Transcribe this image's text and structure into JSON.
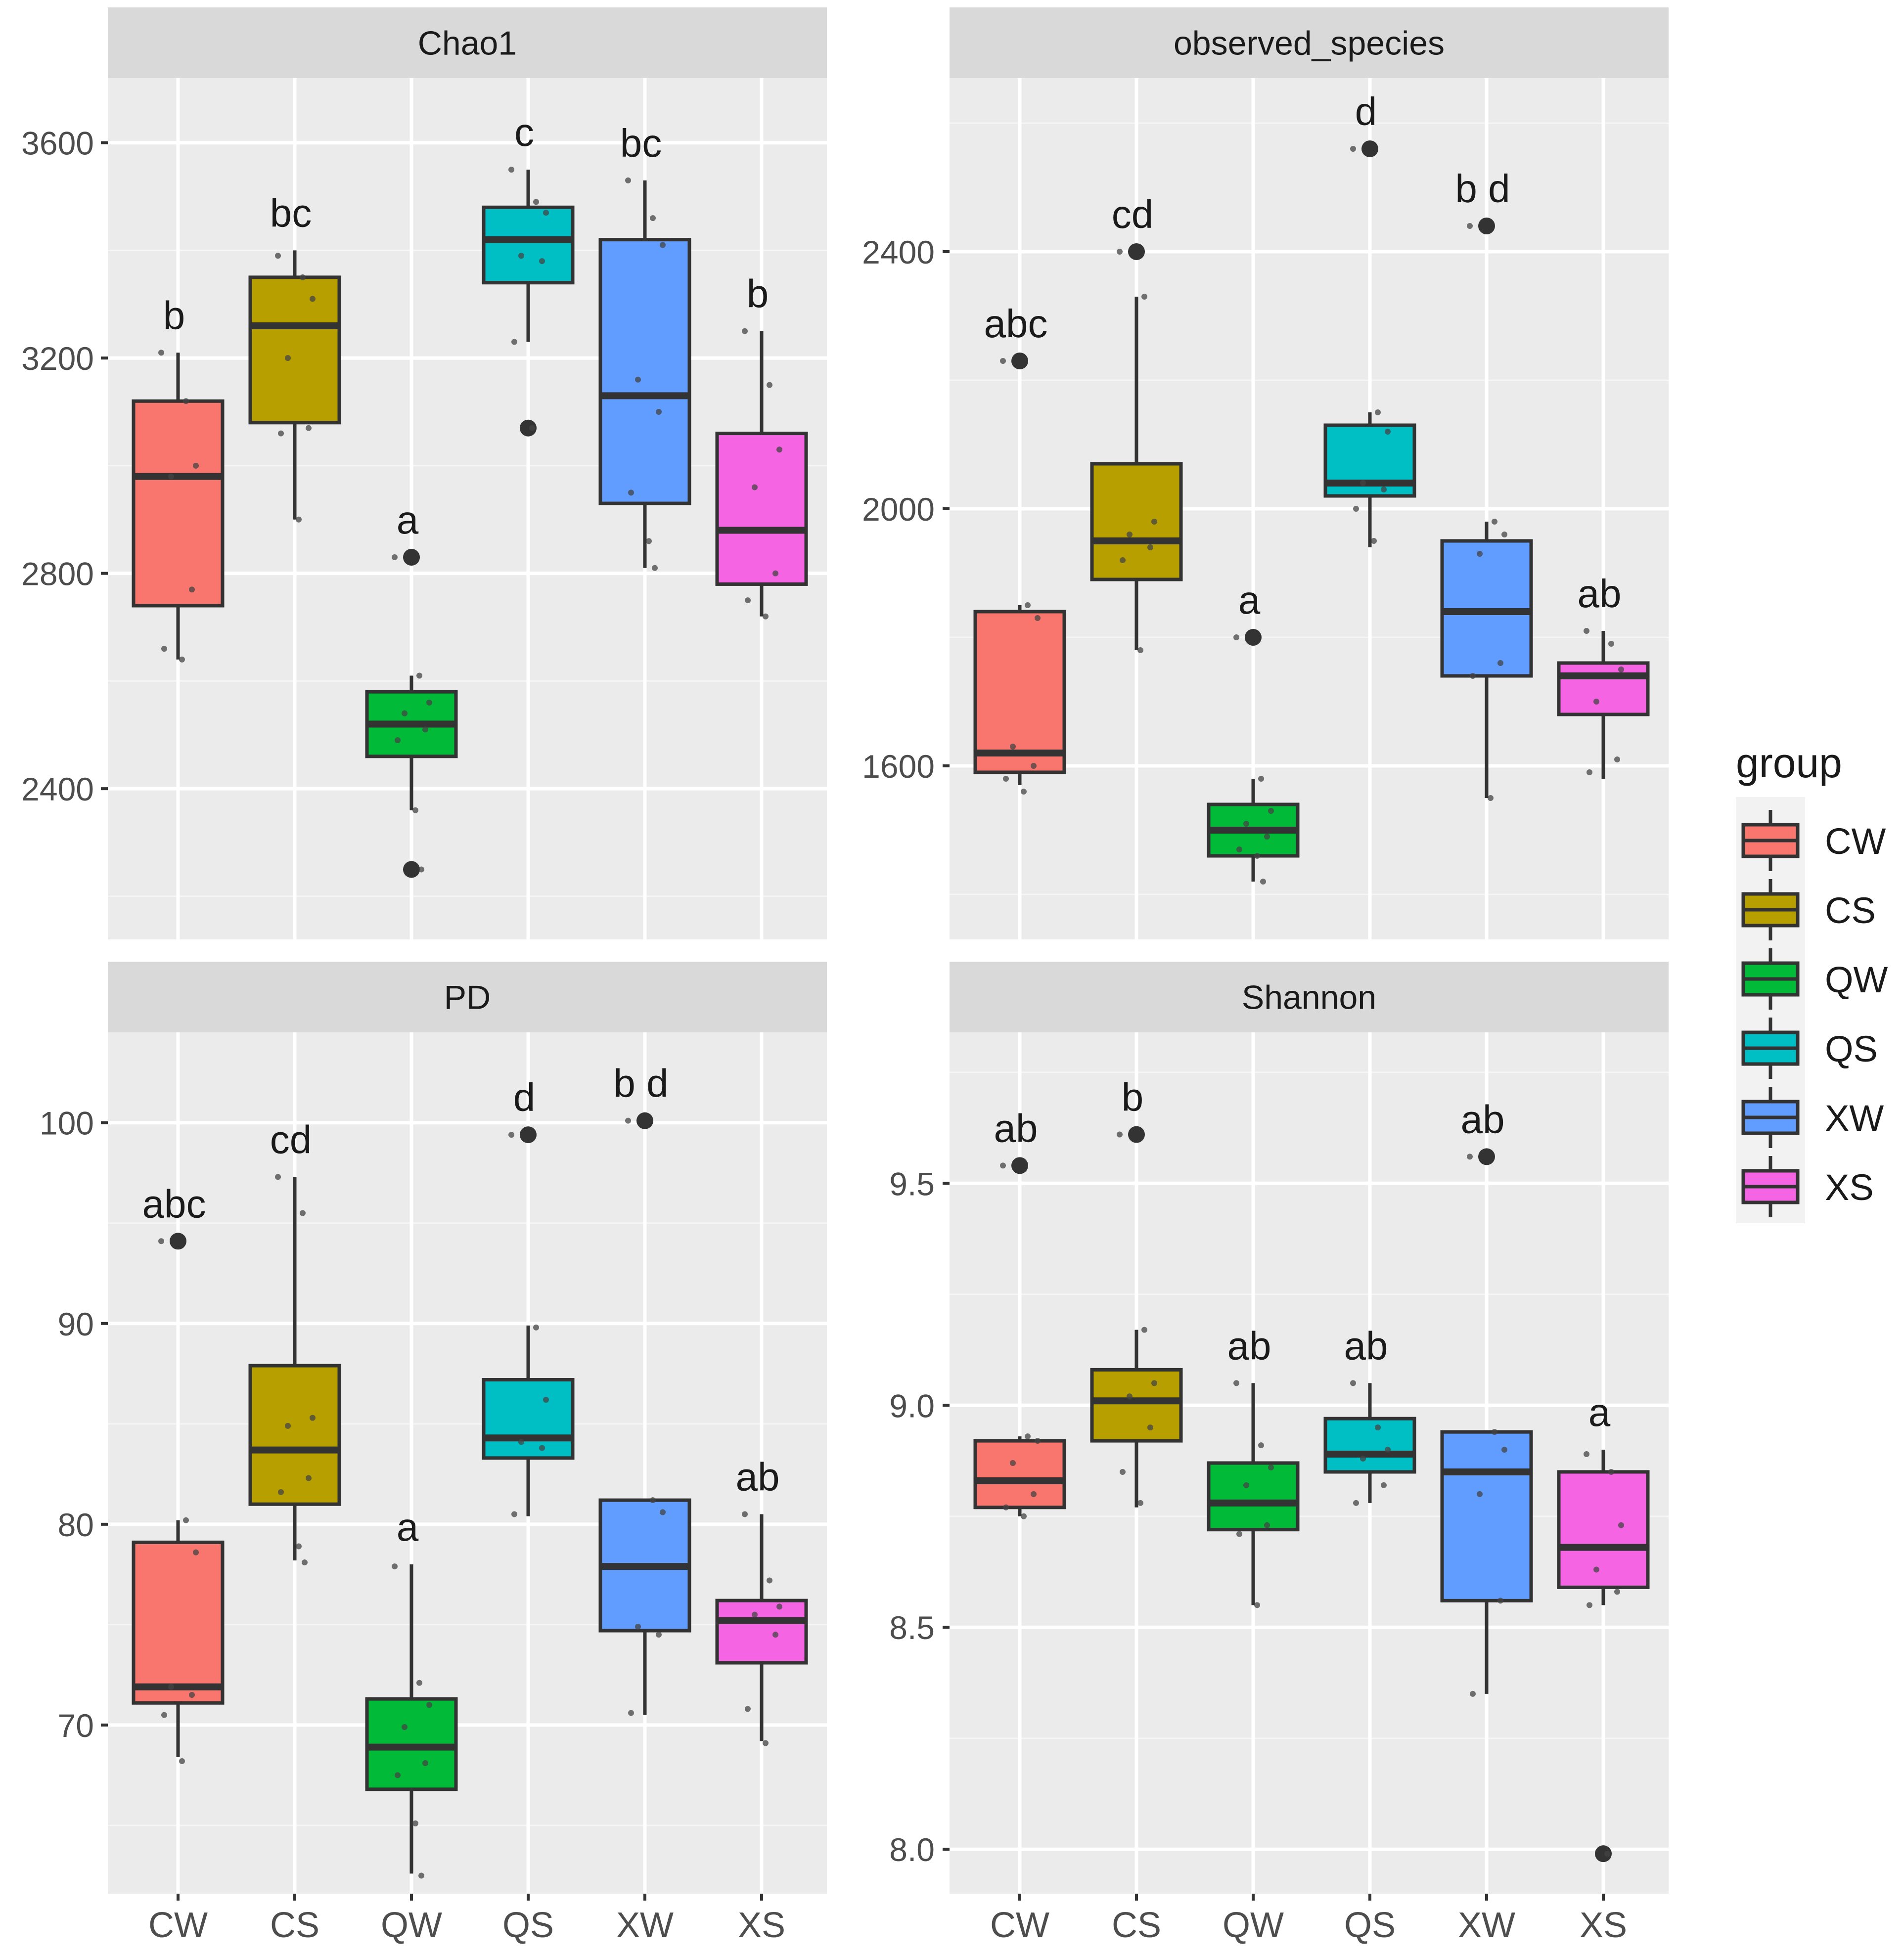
{
  "x_categories": [
    "CW",
    "CS",
    "QW",
    "QS",
    "XW",
    "XS"
  ],
  "legend": {
    "title": "group",
    "items": [
      {
        "label": "CW",
        "color": "#F8766D"
      },
      {
        "label": "CS",
        "color": "#B79F00"
      },
      {
        "label": "QW",
        "color": "#00BA38"
      },
      {
        "label": "QS",
        "color": "#00BFC4"
      },
      {
        "label": "XW",
        "color": "#619CFF"
      },
      {
        "label": "XS",
        "color": "#F564E3"
      }
    ]
  },
  "chart_data": [
    {
      "type": "boxplot",
      "title": "Chao1",
      "ylim": [
        2120,
        3720
      ],
      "yticks": [
        2400,
        2800,
        3200,
        3600
      ],
      "categories": [
        "CW",
        "CS",
        "QW",
        "QS",
        "XW",
        "XS"
      ],
      "boxes": [
        {
          "group": "CW",
          "q1": 2740,
          "median": 2980,
          "q3": 3120,
          "whisker_low": 2640,
          "whisker_high": 3210,
          "outliers": [],
          "letter": "b",
          "points": [
            3210,
            3120,
            3000,
            2980,
            2770,
            2660,
            2640
          ]
        },
        {
          "group": "CS",
          "q1": 3080,
          "median": 3260,
          "q3": 3350,
          "whisker_low": 2900,
          "whisker_high": 3400,
          "outliers": [],
          "letter": "bc",
          "points": [
            3390,
            3350,
            3310,
            3200,
            3070,
            3060,
            2900
          ]
        },
        {
          "group": "QW",
          "q1": 2460,
          "median": 2520,
          "q3": 2580,
          "whisker_low": 2360,
          "whisker_high": 2610,
          "outliers": [
            2830,
            2250
          ],
          "letter": "a",
          "points": [
            2830,
            2610,
            2560,
            2540,
            2510,
            2490,
            2360,
            2250
          ]
        },
        {
          "group": "QS",
          "q1": 3340,
          "median": 3420,
          "q3": 3480,
          "whisker_low": 3230,
          "whisker_high": 3550,
          "outliers": [
            3070
          ],
          "letter": "c",
          "points": [
            3550,
            3490,
            3470,
            3390,
            3380,
            3230,
            3070
          ]
        },
        {
          "group": "XW",
          "q1": 2930,
          "median": 3130,
          "q3": 3420,
          "whisker_low": 2810,
          "whisker_high": 3530,
          "outliers": [],
          "letter": "bc",
          "points": [
            3530,
            3460,
            3410,
            3160,
            3100,
            2950,
            2860,
            2810
          ]
        },
        {
          "group": "XS",
          "q1": 2780,
          "median": 2880,
          "q3": 3060,
          "whisker_low": 2720,
          "whisker_high": 3250,
          "outliers": [],
          "letter": "b",
          "points": [
            3250,
            3150,
            3030,
            2960,
            2800,
            2750,
            2720
          ]
        }
      ]
    },
    {
      "type": "boxplot",
      "title": "observed_species",
      "ylim": [
        1330,
        2670
      ],
      "yticks": [
        1600,
        2000,
        2400
      ],
      "categories": [
        "CW",
        "CS",
        "QW",
        "QS",
        "XW",
        "XS"
      ],
      "boxes": [
        {
          "group": "CW",
          "q1": 1590,
          "median": 1620,
          "q3": 1840,
          "whisker_low": 1570,
          "whisker_high": 1850,
          "outliers": [
            2230
          ],
          "letter": "abc",
          "points": [
            2230,
            1850,
            1830,
            1630,
            1600,
            1580,
            1560
          ]
        },
        {
          "group": "CS",
          "q1": 1890,
          "median": 1950,
          "q3": 2070,
          "whisker_low": 1780,
          "whisker_high": 2330,
          "outliers": [
            2400
          ],
          "letter": "cd",
          "points": [
            2400,
            2330,
            1980,
            1960,
            1940,
            1920,
            1780
          ]
        },
        {
          "group": "QW",
          "q1": 1460,
          "median": 1500,
          "q3": 1540,
          "whisker_low": 1420,
          "whisker_high": 1580,
          "outliers": [
            1800
          ],
          "letter": "a",
          "points": [
            1800,
            1580,
            1530,
            1510,
            1490,
            1470,
            1460,
            1420
          ]
        },
        {
          "group": "QS",
          "q1": 2020,
          "median": 2040,
          "q3": 2130,
          "whisker_low": 1940,
          "whisker_high": 2150,
          "outliers": [
            2560
          ],
          "letter": "d",
          "points": [
            2560,
            2150,
            2120,
            2040,
            2030,
            2000,
            1950
          ]
        },
        {
          "group": "XW",
          "q1": 1740,
          "median": 1840,
          "q3": 1950,
          "whisker_low": 1550,
          "whisker_high": 1980,
          "outliers": [
            2440
          ],
          "letter": "b d",
          "points": [
            2440,
            1980,
            1960,
            1930,
            1760,
            1740,
            1550
          ]
        },
        {
          "group": "XS",
          "q1": 1680,
          "median": 1740,
          "q3": 1760,
          "whisker_low": 1580,
          "whisker_high": 1810,
          "outliers": [],
          "letter": "ab",
          "points": [
            1810,
            1790,
            1750,
            1700,
            1610,
            1590
          ]
        }
      ]
    },
    {
      "type": "boxplot",
      "title": "PD",
      "ylim": [
        61.6,
        104.5
      ],
      "yticks": [
        70,
        80,
        90,
        100
      ],
      "categories": [
        "CW",
        "CS",
        "QW",
        "QS",
        "XW",
        "XS"
      ],
      "boxes": [
        {
          "group": "CW",
          "q1": 71.1,
          "median": 71.9,
          "q3": 79.1,
          "whisker_low": 68.4,
          "whisker_high": 80.2,
          "outliers": [
            94.1
          ],
          "letter": "abc",
          "points": [
            94.1,
            80.2,
            78.6,
            71.9,
            71.5,
            70.5,
            68.2
          ]
        },
        {
          "group": "CS",
          "q1": 81.0,
          "median": 83.7,
          "q3": 87.9,
          "whisker_low": 78.2,
          "whisker_high": 97.3,
          "outliers": [],
          "letter": "cd",
          "points": [
            97.3,
            95.5,
            85.3,
            84.9,
            82.3,
            81.6,
            78.9,
            78.1
          ]
        },
        {
          "group": "QW",
          "q1": 66.8,
          "median": 68.9,
          "q3": 71.3,
          "whisker_low": 62.6,
          "whisker_high": 78.0,
          "outliers": [],
          "letter": "a",
          "points": [
            77.9,
            72.1,
            71.0,
            69.9,
            68.1,
            67.5,
            65.1,
            62.5
          ]
        },
        {
          "group": "QS",
          "q1": 83.3,
          "median": 84.3,
          "q3": 87.2,
          "whisker_low": 80.4,
          "whisker_high": 89.9,
          "outliers": [
            99.4
          ],
          "letter": "d",
          "points": [
            99.4,
            89.8,
            86.2,
            84.1,
            83.8,
            80.5
          ]
        },
        {
          "group": "XW",
          "q1": 74.7,
          "median": 77.9,
          "q3": 81.2,
          "whisker_low": 70.5,
          "whisker_high": 81.2,
          "outliers": [
            100.1
          ],
          "letter": "b d",
          "points": [
            100.1,
            81.2,
            80.6,
            74.9,
            74.5,
            70.6
          ]
        },
        {
          "group": "XS",
          "q1": 73.1,
          "median": 75.2,
          "q3": 76.2,
          "whisker_low": 69.2,
          "whisker_high": 80.5,
          "outliers": [],
          "letter": "ab",
          "points": [
            80.5,
            77.2,
            75.9,
            75.5,
            74.5,
            70.8,
            69.1
          ]
        }
      ]
    },
    {
      "type": "boxplot",
      "title": "Shannon",
      "ylim": [
        7.9,
        9.84
      ],
      "yticks": [
        8.0,
        8.5,
        9.0,
        9.5
      ],
      "categories": [
        "CW",
        "CS",
        "QW",
        "QS",
        "XW",
        "XS"
      ],
      "boxes": [
        {
          "group": "CW",
          "q1": 8.77,
          "median": 8.83,
          "q3": 8.92,
          "whisker_low": 8.75,
          "whisker_high": 8.93,
          "outliers": [
            9.54
          ],
          "letter": "ab",
          "points": [
            9.54,
            8.93,
            8.92,
            8.87,
            8.8,
            8.77,
            8.75
          ]
        },
        {
          "group": "CS",
          "q1": 8.92,
          "median": 9.01,
          "q3": 9.08,
          "whisker_low": 8.77,
          "whisker_high": 9.17,
          "outliers": [
            9.61
          ],
          "letter": "b",
          "points": [
            9.61,
            9.17,
            9.05,
            9.02,
            8.95,
            8.85,
            8.78
          ]
        },
        {
          "group": "QW",
          "q1": 8.72,
          "median": 8.78,
          "q3": 8.87,
          "whisker_low": 8.55,
          "whisker_high": 9.05,
          "outliers": [],
          "letter": "ab",
          "points": [
            9.05,
            8.91,
            8.86,
            8.82,
            8.73,
            8.71,
            8.55
          ]
        },
        {
          "group": "QS",
          "q1": 8.85,
          "median": 8.89,
          "q3": 8.97,
          "whisker_low": 8.78,
          "whisker_high": 9.05,
          "outliers": [],
          "letter": "ab",
          "points": [
            9.05,
            8.95,
            8.9,
            8.88,
            8.82,
            8.78
          ]
        },
        {
          "group": "XW",
          "q1": 8.56,
          "median": 8.85,
          "q3": 8.94,
          "whisker_low": 8.35,
          "whisker_high": 8.94,
          "outliers": [
            9.56
          ],
          "letter": "ab",
          "points": [
            9.56,
            8.94,
            8.9,
            8.8,
            8.56,
            8.35
          ]
        },
        {
          "group": "XS",
          "q1": 8.59,
          "median": 8.68,
          "q3": 8.85,
          "whisker_low": 8.55,
          "whisker_high": 8.9,
          "outliers": [
            7.99
          ],
          "letter": "a",
          "points": [
            8.89,
            8.85,
            8.73,
            8.63,
            8.58,
            8.55,
            7.99
          ]
        }
      ]
    }
  ]
}
